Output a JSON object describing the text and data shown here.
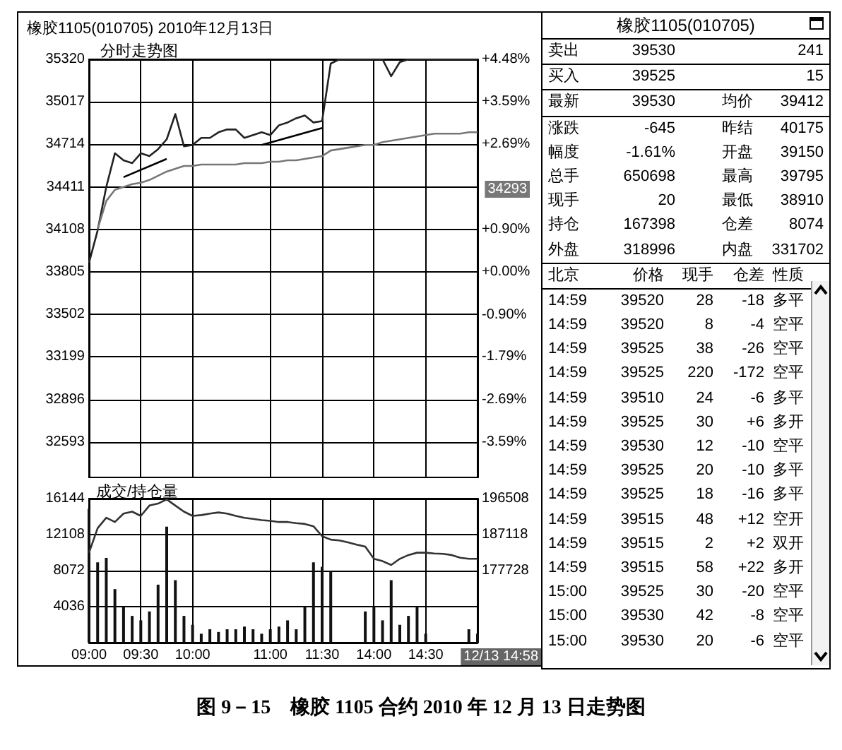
{
  "chart_data": [
    {
      "type": "line",
      "title": "橡胶1105(010705) 2010年12月13日",
      "subtitle": "分时走势图",
      "categories": [
        null,
        null,
        null,
        null,
        null,
        null,
        null,
        null,
        null,
        null,
        null,
        null,
        null,
        null,
        null,
        null,
        null,
        null,
        null,
        null,
        null,
        null,
        null,
        null,
        null,
        null,
        null,
        null,
        null,
        null,
        null,
        null,
        null,
        null,
        null,
        null,
        null,
        null,
        null,
        null,
        null,
        null,
        null,
        null,
        null,
        null
      ],
      "series": [
        {
          "color": "#222222",
          "values": [
            33870,
            34100,
            34410,
            34650,
            34600,
            34580,
            34650,
            34630,
            34680,
            34750,
            34930,
            34700,
            34710,
            34760,
            34760,
            34800,
            34820,
            34820,
            34760,
            34780,
            34800,
            34780,
            34850,
            34870,
            34900,
            34920,
            34870,
            34880,
            35290,
            35320,
            35320,
            35320,
            35320,
            35320,
            35320,
            35200,
            35300,
            35320,
            35320,
            35320,
            35320,
            35320,
            35320,
            35320,
            35320,
            35320
          ]
        },
        {
          "color": "#777777",
          "values": [
            null,
            34110,
            34310,
            34390,
            34410,
            34430,
            34440,
            34460,
            34490,
            34520,
            34540,
            34560,
            34560,
            34570,
            34570,
            34570,
            34570,
            34570,
            34580,
            34580,
            34580,
            34590,
            34590,
            34600,
            34600,
            34610,
            34620,
            34630,
            34670,
            34680,
            34690,
            34700,
            34710,
            34710,
            34730,
            34740,
            34750,
            34760,
            34770,
            34780,
            34790,
            34790,
            34790,
            34790,
            34800,
            34800
          ]
        },
        {
          "color": "#000000",
          "values": [
            null,
            null,
            null,
            null,
            34480,
            null,
            null,
            null,
            null,
            34610,
            null,
            null,
            null,
            null,
            null,
            null,
            null,
            null,
            null,
            null,
            null,
            null,
            null,
            null,
            null,
            null,
            null,
            null,
            null,
            null,
            null,
            null,
            null,
            null,
            null,
            null,
            null,
            null,
            null,
            null,
            null,
            null,
            null,
            null,
            null,
            null
          ]
        },
        {
          "color": "#000000",
          "values": [
            null,
            null,
            null,
            null,
            null,
            null,
            null,
            null,
            null,
            null,
            null,
            null,
            null,
            null,
            null,
            null,
            null,
            null,
            null,
            null,
            34710,
            null,
            null,
            null,
            null,
            null,
            null,
            34830,
            null,
            null,
            null,
            null,
            null,
            null,
            null,
            null,
            null,
            null,
            null,
            null,
            null,
            null,
            null,
            null,
            null,
            null
          ]
        }
      ],
      "ylim": [
        32340,
        35320
      ],
      "yticks": [
        35320,
        35017,
        34714,
        34411,
        34108,
        33805,
        33502,
        33199,
        32896,
        32593
      ],
      "y2lim": [
        -4.33,
        4.48
      ],
      "y2ticks": [
        {
          "value": 4.48,
          "label": "+4.48%"
        },
        {
          "value": 3.59,
          "label": "+3.59%"
        },
        {
          "value": 2.69,
          "label": "+2.69%"
        },
        {
          "value": 1.79,
          "label": null
        },
        {
          "value": 0.9,
          "label": "+0.90%"
        },
        {
          "value": 0,
          "label": "+0.00%"
        },
        {
          "value": -0.9,
          "label": "-0.90%"
        },
        {
          "value": -1.79,
          "label": "-1.79%"
        },
        {
          "value": -2.69,
          "label": "-2.69%"
        },
        {
          "value": -3.59,
          "label": "-3.59%"
        }
      ],
      "tick_labels": "y",
      "grid": true,
      "marker": "none",
      "annotations": [
        "34293",
        "图 9－15　橡胶 1105 合约 2010 年 12 月 13 日走势图"
      ]
    },
    {
      "type": "bar",
      "title": "成交/持仓量",
      "categories": [
        "09:00",
        null,
        null,
        null,
        null,
        null,
        "09:30",
        null,
        null,
        null,
        null,
        null,
        "10:00",
        null,
        null,
        null,
        null,
        null,
        null,
        null,
        null,
        "11:00",
        null,
        null,
        null,
        null,
        null,
        "11:30",
        null,
        null,
        null,
        null,
        null,
        "14:00",
        null,
        null,
        null,
        null,
        null,
        "14:30",
        null,
        null,
        null,
        null,
        null,
        null
      ],
      "series": [
        {
          "color": "#111111",
          "values": [
            15000,
            9000,
            9500,
            6000,
            4000,
            3000,
            2500,
            3500,
            6500,
            13000,
            7000,
            3000,
            2000,
            1000,
            1500,
            1200,
            1500,
            1500,
            1800,
            1500,
            1000,
            1500,
            1800,
            2500,
            1500,
            4000,
            9000,
            8500,
            8000,
            0,
            0,
            0,
            3500,
            4000,
            2500,
            7000,
            2000,
            3000,
            4000,
            1000,
            0,
            0,
            0,
            0,
            1500,
            1000
          ]
        },
        {
          "type": "line",
          "axis": "y2",
          "color": "#333333",
          "values": [
            182400,
            188800,
            191500,
            190400,
            192600,
            193100,
            192000,
            194700,
            195200,
            196300,
            194700,
            193100,
            192000,
            192200,
            192600,
            192900,
            192600,
            192000,
            191500,
            191200,
            190900,
            190700,
            190400,
            190400,
            190100,
            189900,
            189300,
            186700,
            185800,
            185600,
            185100,
            184500,
            184000,
            180800,
            180200,
            179200,
            180800,
            181800,
            182400,
            182400,
            182200,
            182100,
            181800,
            181100,
            180800,
            180800
          ]
        }
      ],
      "ylim": [
        0,
        16144
      ],
      "yticks": [
        16144,
        12108,
        8072,
        4036
      ],
      "y2lim": [
        158948,
        196508
      ],
      "y2ticks": [
        196508,
        187118,
        177728
      ],
      "grid": true,
      "marker": "none",
      "annotations": [
        "12/13 14:58"
      ]
    },
    {
      "type": "other",
      "title": "橡胶1105(010705)",
      "annotations": [
        "卖出 39530 241",
        "买入 39525 15",
        "最新 39530 均价 39412",
        "涨跌 -645 昨结 40175",
        "幅度 -1.61% 开盘 39150",
        "总手 650698 最高 39795",
        "现手 20 最低 38910",
        "持仓 167398 仓差 8074",
        "外盘 318996 内盘 331702",
        "北京 价格 现手 仓差 性质",
        "14:59 39520 28 -18 多平",
        "14:59 39520 8 -4 空平",
        "14:59 39525 38 -26 空平",
        "14:59 39525 220 -172 空平",
        "14:59 39510 24 -6 多平",
        "14:59 39525 30 +6 多开",
        "14:59 39530 12 -10 空平",
        "14:59 39525 20 -10 多平",
        "14:59 39525 18 -16 多平",
        "14:59 39515 48 +12 空开",
        "14:59 39515 2 +2 双开",
        "14:59 39515 58 +22 多开",
        "15:00 39525 30 -20 空平",
        "15:00 39530 42 -8 空平",
        "15:00 39530 20 -6 空平"
      ]
    }
  ]
}
